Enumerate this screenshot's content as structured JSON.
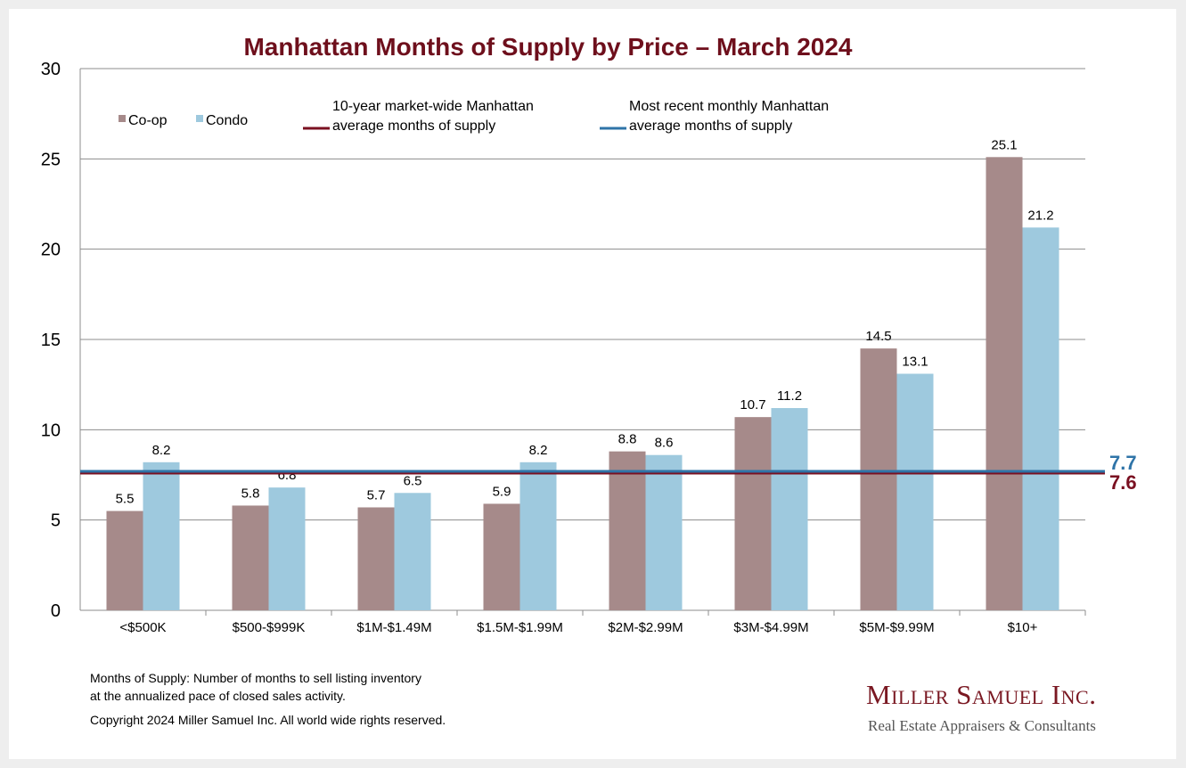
{
  "chart_data": {
    "type": "bar",
    "title": "Manhattan Months of Supply by Price – March 2024",
    "categories": [
      "<$500K",
      "$500-$999K",
      "$1M-$1.49M",
      "$1.5M-$1.99M",
      "$2M-$2.99M",
      "$3M-$4.99M",
      "$5M-$9.99M",
      "$10+"
    ],
    "series": [
      {
        "name": "Co-op",
        "color": "#a68a8a",
        "values": [
          5.5,
          5.8,
          5.7,
          5.9,
          8.8,
          10.7,
          14.5,
          25.1
        ]
      },
      {
        "name": "Condo",
        "color": "#9ec9de",
        "values": [
          8.2,
          6.8,
          6.5,
          8.2,
          8.6,
          11.2,
          13.1,
          21.2
        ]
      }
    ],
    "value_labels": {
      "Co-op": [
        "5.5",
        "5.8",
        "5.7",
        "5.9",
        "8.8",
        "10.7",
        "14.5",
        "25.1"
      ],
      "Condo": [
        "8.2",
        "6.8",
        "6.5",
        "8.2",
        "8.6",
        "11.2",
        "13.1",
        "21.2"
      ]
    },
    "reference_lines": [
      {
        "name": "10-year market-wide Manhattan average months of supply",
        "legend_lines": [
          "10-year market-wide Manhattan",
          "average months of supply"
        ],
        "value": 7.6,
        "label": "7.6",
        "color": "#7a1021"
      },
      {
        "name": "Most recent monthly Manhattan average months of supply",
        "legend_lines": [
          "Most recent monthly Manhattan",
          "average months of supply"
        ],
        "value": 7.7,
        "label": "7.7",
        "color": "#2f74a8"
      }
    ],
    "ylim": [
      0,
      30
    ],
    "yticks": [
      "0",
      "5",
      "10",
      "15",
      "20",
      "25",
      "30"
    ],
    "xlabel": "",
    "ylabel": "",
    "grid": true,
    "legend": "top-left"
  },
  "footnote": {
    "line1": "Months of Supply: Number of months to sell listing inventory",
    "line2": "at the annualized pace of closed sales activity.",
    "copyright": "Copyright 2024 Miller Samuel Inc.  All world wide rights reserved."
  },
  "logo": {
    "name": "Miller Samuel Inc.",
    "tagline": "Real Estate Appraisers & Consultants"
  }
}
